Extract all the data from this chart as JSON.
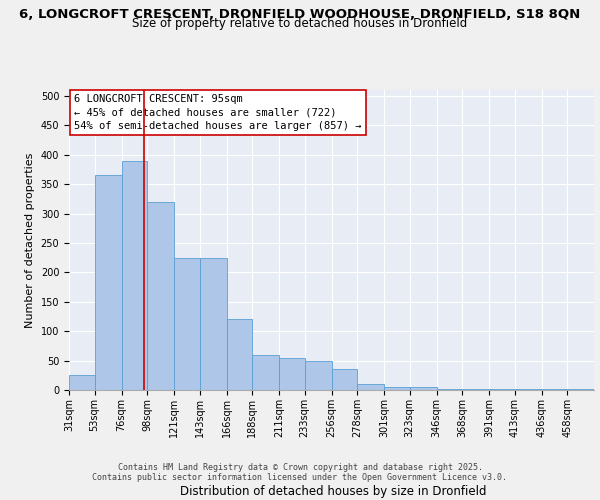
{
  "title_line1": "6, LONGCROFT CRESCENT, DRONFIELD WOODHOUSE, DRONFIELD, S18 8QN",
  "title_line2": "Size of property relative to detached houses in Dronfield",
  "xlabel": "Distribution of detached houses by size in Dronfield",
  "ylabel": "Number of detached properties",
  "bar_edges": [
    31,
    53,
    76,
    98,
    121,
    143,
    166,
    188,
    211,
    233,
    256,
    278,
    301,
    323,
    346,
    368,
    391,
    413,
    436,
    458,
    481
  ],
  "bar_heights": [
    25,
    365,
    390,
    320,
    225,
    225,
    120,
    60,
    55,
    50,
    35,
    10,
    5,
    5,
    2,
    1,
    1,
    1,
    1,
    2
  ],
  "bar_color": "#aec6e8",
  "bar_edge_color": "#5a9fd4",
  "vline_x": 95,
  "vline_color": "#cc0000",
  "annotation_text": "6 LONGCROFT CRESCENT: 95sqm\n← 45% of detached houses are smaller (722)\n54% of semi-detached houses are larger (857) →",
  "annotation_box_color": "#ffffff",
  "annotation_box_edge": "#cc0000",
  "ylim": [
    0,
    510
  ],
  "yticks": [
    0,
    50,
    100,
    150,
    200,
    250,
    300,
    350,
    400,
    450,
    500
  ],
  "bg_color": "#e8edf5",
  "fig_bg_color": "#f0f0f0",
  "grid_color": "#ffffff",
  "footer_text": "Contains HM Land Registry data © Crown copyright and database right 2025.\nContains public sector information licensed under the Open Government Licence v3.0.",
  "tick_label_fontsize": 7.0,
  "title_fontsize1": 9.5,
  "title_fontsize2": 8.5,
  "xlabel_fontsize": 8.5,
  "ylabel_fontsize": 8.0,
  "annotation_fontsize": 7.5,
  "footer_fontsize": 6.0
}
